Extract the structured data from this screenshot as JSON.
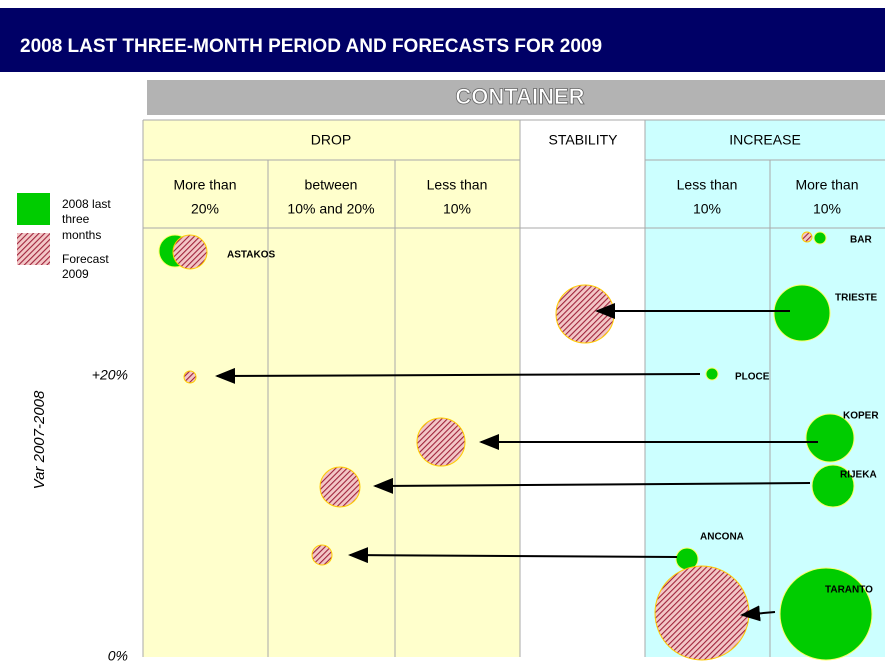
{
  "header": {
    "title": "2008 LAST THREE-MONTH PERIOD AND FORECASTS FOR 2009",
    "subtitle": "CONTAINER"
  },
  "groups": [
    {
      "label": "DROP",
      "columns": [
        [
          "More than",
          "20%"
        ],
        [
          "between",
          "10% and 20%"
        ],
        [
          "Less than",
          "10%"
        ]
      ]
    },
    {
      "label": "STABILITY",
      "columns": []
    },
    {
      "label": "INCREASE",
      "columns": [
        [
          "Less than",
          "10%"
        ],
        [
          "More than",
          "10%"
        ]
      ]
    }
  ],
  "legend": [
    [
      "2008 last",
      "three",
      "months"
    ],
    [
      "Forecast",
      "2009"
    ]
  ],
  "axis": {
    "label": "Var 2007-2008",
    "ticks": [
      "+20%",
      "0%"
    ]
  },
  "nodes": [
    {
      "label": "ASTAKOS"
    },
    {
      "label": "BAR"
    },
    {
      "label": "TRIESTE"
    },
    {
      "label": "PLOCE"
    },
    {
      "label": "KOPER"
    },
    {
      "label": "RIJEKA"
    },
    {
      "label": "ANCONA"
    },
    {
      "label": "TARANTO"
    }
  ]
}
